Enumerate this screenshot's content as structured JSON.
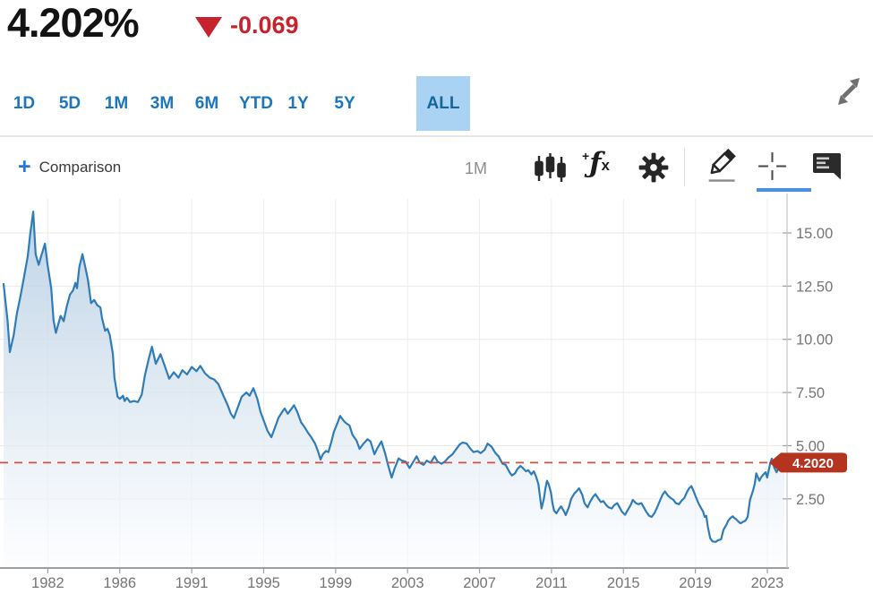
{
  "header": {
    "value": "4.202%",
    "change": "-0.069",
    "direction": "down",
    "accent_red": "#c5232e"
  },
  "range_tabs": {
    "items": [
      "1D",
      "5D",
      "1M",
      "3M",
      "6M",
      "YTD",
      "1Y",
      "5Y",
      "ALL"
    ],
    "selected": "ALL",
    "selected_bg": "#a9d2f3",
    "text_color": "#1b76bd"
  },
  "toolbar": {
    "comparison_plus": "+",
    "comparison_label": "Comparison",
    "interval_label": "1M",
    "fx_plus": "+",
    "fx_f": "ƒ",
    "fx_x": "x",
    "active_tool": "crosshair",
    "active_underline_color": "#4a8fe2",
    "icons": [
      "candlestick-icon",
      "function-icon",
      "gear-icon",
      "draw-icon",
      "crosshair-icon",
      "comment-icon"
    ]
  },
  "chart_data": {
    "type": "area",
    "series_name": "yield_percent",
    "x_tick_labels": [
      "1982",
      "1986",
      "1991",
      "1995",
      "1999",
      "2003",
      "2007",
      "2011",
      "2015",
      "2019",
      "2023"
    ],
    "y_tick_values": [
      2.5,
      5,
      7.5,
      10,
      12.5,
      15
    ],
    "y_axis": {
      "min": -0.75,
      "max": 16.6
    },
    "grid": true,
    "legend": false,
    "current_value": 4.202,
    "current_label": "4.2020",
    "line_color": "#2e7cb8",
    "area_top_color": "#b4cce2",
    "area_bottom_color": "#fcfdff",
    "dashed_line_color": "#ce5342",
    "badge_color": "#b43420",
    "marker_color": "#1b79cf",
    "points": [
      [
        0.0,
        12.6
      ],
      [
        0.005,
        10.9
      ],
      [
        0.008,
        9.4
      ],
      [
        0.013,
        10.2
      ],
      [
        0.017,
        11.2
      ],
      [
        0.022,
        12.1
      ],
      [
        0.026,
        12.9
      ],
      [
        0.031,
        13.9
      ],
      [
        0.034,
        14.9
      ],
      [
        0.038,
        16.0
      ],
      [
        0.041,
        14.0
      ],
      [
        0.045,
        13.5
      ],
      [
        0.048,
        13.9
      ],
      [
        0.053,
        14.5
      ],
      [
        0.056,
        13.6
      ],
      [
        0.061,
        12.4
      ],
      [
        0.064,
        10.9
      ],
      [
        0.067,
        10.3
      ],
      [
        0.07,
        10.7
      ],
      [
        0.073,
        11.1
      ],
      [
        0.077,
        10.85
      ],
      [
        0.081,
        11.55
      ],
      [
        0.085,
        12.1
      ],
      [
        0.089,
        12.3
      ],
      [
        0.092,
        12.65
      ],
      [
        0.094,
        12.4
      ],
      [
        0.097,
        13.4
      ],
      [
        0.101,
        14.0
      ],
      [
        0.104,
        13.5
      ],
      [
        0.108,
        12.8
      ],
      [
        0.112,
        11.7
      ],
      [
        0.116,
        11.85
      ],
      [
        0.12,
        11.6
      ],
      [
        0.124,
        11.5
      ],
      [
        0.126,
        11.0
      ],
      [
        0.13,
        10.4
      ],
      [
        0.133,
        10.5
      ],
      [
        0.136,
        10.2
      ],
      [
        0.14,
        9.3
      ],
      [
        0.142,
        8.2
      ],
      [
        0.146,
        7.3
      ],
      [
        0.149,
        7.2
      ],
      [
        0.153,
        7.35
      ],
      [
        0.155,
        7.1
      ],
      [
        0.158,
        7.25
      ],
      [
        0.162,
        7.05
      ],
      [
        0.167,
        7.1
      ],
      [
        0.172,
        7.05
      ],
      [
        0.177,
        7.4
      ],
      [
        0.181,
        8.3
      ],
      [
        0.186,
        9.1
      ],
      [
        0.19,
        9.65
      ],
      [
        0.195,
        8.85
      ],
      [
        0.201,
        9.3
      ],
      [
        0.206,
        8.8
      ],
      [
        0.212,
        8.15
      ],
      [
        0.218,
        8.45
      ],
      [
        0.224,
        8.2
      ],
      [
        0.229,
        8.55
      ],
      [
        0.235,
        8.35
      ],
      [
        0.241,
        8.7
      ],
      [
        0.247,
        8.5
      ],
      [
        0.252,
        8.75
      ],
      [
        0.258,
        8.4
      ],
      [
        0.264,
        8.2
      ],
      [
        0.27,
        8.1
      ],
      [
        0.275,
        7.9
      ],
      [
        0.281,
        7.4
      ],
      [
        0.287,
        6.9
      ],
      [
        0.291,
        6.5
      ],
      [
        0.295,
        6.3
      ],
      [
        0.299,
        6.7
      ],
      [
        0.305,
        7.3
      ],
      [
        0.311,
        7.5
      ],
      [
        0.315,
        7.35
      ],
      [
        0.32,
        7.7
      ],
      [
        0.325,
        7.2
      ],
      [
        0.329,
        6.6
      ],
      [
        0.334,
        6.1
      ],
      [
        0.338,
        5.7
      ],
      [
        0.343,
        5.4
      ],
      [
        0.348,
        5.9
      ],
      [
        0.352,
        6.3
      ],
      [
        0.357,
        6.6
      ],
      [
        0.36,
        6.75
      ],
      [
        0.364,
        6.5
      ],
      [
        0.367,
        6.65
      ],
      [
        0.372,
        6.9
      ],
      [
        0.376,
        6.6
      ],
      [
        0.381,
        6.1
      ],
      [
        0.385,
        5.9
      ],
      [
        0.39,
        5.6
      ],
      [
        0.394,
        5.4
      ],
      [
        0.399,
        5.1
      ],
      [
        0.403,
        4.7
      ],
      [
        0.406,
        4.35
      ],
      [
        0.409,
        4.6
      ],
      [
        0.413,
        4.75
      ],
      [
        0.416,
        4.7
      ],
      [
        0.42,
        5.2
      ],
      [
        0.423,
        5.65
      ],
      [
        0.428,
        6.1
      ],
      [
        0.431,
        6.4
      ],
      [
        0.436,
        6.15
      ],
      [
        0.439,
        6.05
      ],
      [
        0.443,
        5.95
      ],
      [
        0.447,
        5.5
      ],
      [
        0.452,
        5.25
      ],
      [
        0.456,
        4.85
      ],
      [
        0.461,
        5.1
      ],
      [
        0.466,
        5.3
      ],
      [
        0.47,
        5.2
      ],
      [
        0.475,
        4.6
      ],
      [
        0.479,
        4.9
      ],
      [
        0.484,
        5.2
      ],
      [
        0.489,
        4.6
      ],
      [
        0.492,
        4.15
      ],
      [
        0.497,
        3.5
      ],
      [
        0.501,
        3.95
      ],
      [
        0.506,
        4.4
      ],
      [
        0.51,
        4.3
      ],
      [
        0.515,
        4.25
      ],
      [
        0.52,
        3.95
      ],
      [
        0.524,
        4.2
      ],
      [
        0.529,
        4.5
      ],
      [
        0.533,
        4.2
      ],
      [
        0.538,
        4.1
      ],
      [
        0.542,
        4.3
      ],
      [
        0.547,
        4.2
      ],
      [
        0.552,
        4.5
      ],
      [
        0.556,
        4.25
      ],
      [
        0.561,
        4.15
      ],
      [
        0.565,
        4.25
      ],
      [
        0.57,
        4.45
      ],
      [
        0.575,
        4.6
      ],
      [
        0.579,
        4.8
      ],
      [
        0.584,
        5.05
      ],
      [
        0.588,
        5.15
      ],
      [
        0.593,
        5.1
      ],
      [
        0.598,
        4.85
      ],
      [
        0.602,
        4.7
      ],
      [
        0.607,
        4.75
      ],
      [
        0.611,
        4.65
      ],
      [
        0.616,
        4.8
      ],
      [
        0.62,
        5.1
      ],
      [
        0.625,
        4.95
      ],
      [
        0.63,
        4.65
      ],
      [
        0.634,
        4.5
      ],
      [
        0.639,
        4.15
      ],
      [
        0.643,
        4.1
      ],
      [
        0.648,
        3.75
      ],
      [
        0.651,
        3.6
      ],
      [
        0.655,
        3.7
      ],
      [
        0.658,
        3.9
      ],
      [
        0.662,
        4.05
      ],
      [
        0.665,
        3.95
      ],
      [
        0.669,
        3.8
      ],
      [
        0.672,
        3.85
      ],
      [
        0.676,
        3.65
      ],
      [
        0.679,
        3.8
      ],
      [
        0.682,
        3.55
      ],
      [
        0.685,
        3.2
      ],
      [
        0.687,
        2.6
      ],
      [
        0.689,
        2.05
      ],
      [
        0.692,
        2.5
      ],
      [
        0.694,
        3.0
      ],
      [
        0.696,
        3.35
      ],
      [
        0.698,
        3.2
      ],
      [
        0.701,
        2.8
      ],
      [
        0.703,
        2.3
      ],
      [
        0.705,
        1.95
      ],
      [
        0.708,
        1.82
      ],
      [
        0.711,
        2.0
      ],
      [
        0.714,
        2.15
      ],
      [
        0.718,
        1.9
      ],
      [
        0.72,
        1.74
      ],
      [
        0.724,
        2.1
      ],
      [
        0.727,
        2.5
      ],
      [
        0.731,
        2.75
      ],
      [
        0.734,
        2.86
      ],
      [
        0.737,
        3.0
      ],
      [
        0.741,
        2.7
      ],
      [
        0.744,
        2.3
      ],
      [
        0.748,
        2.1
      ],
      [
        0.751,
        2.35
      ],
      [
        0.755,
        2.6
      ],
      [
        0.758,
        2.72
      ],
      [
        0.762,
        2.5
      ],
      [
        0.765,
        2.35
      ],
      [
        0.768,
        2.4
      ],
      [
        0.772,
        2.2
      ],
      [
        0.775,
        2.1
      ],
      [
        0.779,
        2.05
      ],
      [
        0.782,
        2.2
      ],
      [
        0.786,
        2.3
      ],
      [
        0.789,
        2.1
      ],
      [
        0.792,
        1.9
      ],
      [
        0.796,
        1.75
      ],
      [
        0.799,
        1.95
      ],
      [
        0.803,
        2.2
      ],
      [
        0.806,
        2.45
      ],
      [
        0.81,
        2.3
      ],
      [
        0.813,
        2.25
      ],
      [
        0.817,
        2.3
      ],
      [
        0.82,
        2.1
      ],
      [
        0.823,
        1.9
      ],
      [
        0.827,
        1.7
      ],
      [
        0.83,
        1.65
      ],
      [
        0.834,
        1.85
      ],
      [
        0.837,
        2.1
      ],
      [
        0.841,
        2.45
      ],
      [
        0.844,
        2.7
      ],
      [
        0.847,
        2.85
      ],
      [
        0.851,
        2.65
      ],
      [
        0.854,
        2.55
      ],
      [
        0.858,
        2.45
      ],
      [
        0.861,
        2.3
      ],
      [
        0.865,
        2.25
      ],
      [
        0.868,
        2.4
      ],
      [
        0.872,
        2.55
      ],
      [
        0.875,
        2.8
      ],
      [
        0.878,
        3.0
      ],
      [
        0.881,
        3.1
      ],
      [
        0.884,
        2.85
      ],
      [
        0.887,
        2.55
      ],
      [
        0.89,
        2.3
      ],
      [
        0.892,
        2.15
      ],
      [
        0.896,
        1.9
      ],
      [
        0.898,
        1.65
      ],
      [
        0.9,
        1.7
      ],
      [
        0.902,
        1.2
      ],
      [
        0.905,
        0.65
      ],
      [
        0.908,
        0.5
      ],
      [
        0.912,
        0.48
      ],
      [
        0.915,
        0.55
      ],
      [
        0.919,
        0.6
      ],
      [
        0.922,
        1.05
      ],
      [
        0.926,
        1.3
      ],
      [
        0.928,
        1.47
      ],
      [
        0.931,
        1.6
      ],
      [
        0.934,
        1.68
      ],
      [
        0.936,
        1.6
      ],
      [
        0.938,
        1.55
      ],
      [
        0.942,
        1.4
      ],
      [
        0.944,
        1.35
      ],
      [
        0.947,
        1.42
      ],
      [
        0.95,
        1.47
      ],
      [
        0.953,
        1.65
      ],
      [
        0.956,
        2.45
      ],
      [
        0.96,
        2.9
      ],
      [
        0.962,
        3.2
      ],
      [
        0.964,
        3.7
      ],
      [
        0.968,
        3.35
      ],
      [
        0.97,
        3.5
      ],
      [
        0.972,
        3.6
      ],
      [
        0.976,
        3.75
      ],
      [
        0.978,
        3.5
      ],
      [
        0.982,
        4.18
      ],
      [
        0.984,
        4.39
      ],
      [
        0.987,
        3.97
      ],
      [
        0.99,
        3.75
      ],
      [
        0.992,
        3.9
      ],
      [
        0.994,
        4.05
      ],
      [
        0.997,
        4.14
      ],
      [
        1.0,
        4.202
      ]
    ]
  }
}
